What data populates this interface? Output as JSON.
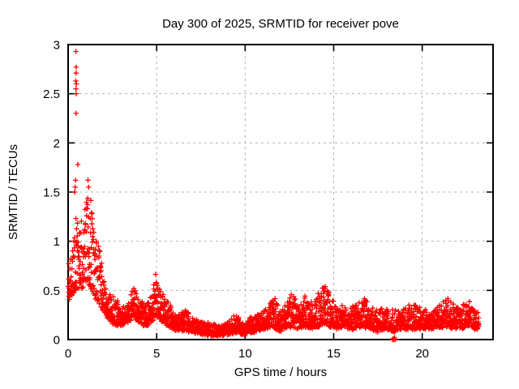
{
  "chart_data": {
    "type": "scatter",
    "title": "Day 300 of 2025, SRMTID for receiver pove",
    "xlabel": "GPS time / hours",
    "ylabel": "SRMTID / TECUs",
    "xlim": [
      0,
      24
    ],
    "ylim": [
      0,
      3
    ],
    "xticks": [
      0,
      5,
      10,
      15,
      20
    ],
    "xtick_labels": [
      "0",
      "5",
      "10",
      "15",
      "20"
    ],
    "yticks": [
      0,
      0.5,
      1,
      1.5,
      2,
      2.5,
      3
    ],
    "ytick_labels": [
      "0",
      "0.5",
      "1",
      "1.5",
      "2",
      "2.5",
      "3"
    ],
    "grid": true,
    "legend_position": "none",
    "marker": "plus",
    "colors": {
      "marker": "#ff0000",
      "grid": "#b4b4b4",
      "frame": "#000000",
      "text": "#000000",
      "background": "#ffffff"
    },
    "sampling": {
      "num_points": 2600,
      "x_start": 0.0,
      "x_end": 23.2
    },
    "band_profile": [
      [
        0.0,
        0.35,
        0.8
      ],
      [
        0.15,
        0.4,
        0.85
      ],
      [
        0.3,
        0.42,
        1.05
      ],
      [
        0.45,
        0.45,
        1.45
      ],
      [
        0.6,
        0.48,
        1.35
      ],
      [
        0.8,
        0.5,
        1.2
      ],
      [
        1.0,
        0.55,
        1.4
      ],
      [
        1.2,
        0.5,
        1.6
      ],
      [
        1.35,
        0.45,
        1.35
      ],
      [
        1.5,
        0.4,
        1.05
      ],
      [
        1.7,
        0.35,
        1.1
      ],
      [
        1.9,
        0.28,
        0.8
      ],
      [
        2.1,
        0.22,
        0.62
      ],
      [
        2.35,
        0.18,
        0.5
      ],
      [
        2.6,
        0.15,
        0.42
      ],
      [
        2.9,
        0.13,
        0.38
      ],
      [
        3.2,
        0.15,
        0.36
      ],
      [
        3.5,
        0.18,
        0.45
      ],
      [
        3.75,
        0.2,
        0.58
      ],
      [
        4.0,
        0.15,
        0.45
      ],
      [
        4.3,
        0.12,
        0.35
      ],
      [
        4.6,
        0.14,
        0.4
      ],
      [
        4.85,
        0.18,
        0.6
      ],
      [
        5.0,
        0.22,
        0.78
      ],
      [
        5.2,
        0.18,
        0.55
      ],
      [
        5.45,
        0.15,
        0.42
      ],
      [
        5.7,
        0.13,
        0.38
      ],
      [
        6.0,
        0.1,
        0.3
      ],
      [
        6.3,
        0.08,
        0.26
      ],
      [
        6.6,
        0.09,
        0.32
      ],
      [
        6.9,
        0.07,
        0.24
      ],
      [
        7.2,
        0.06,
        0.2
      ],
      [
        7.6,
        0.05,
        0.17
      ],
      [
        8.0,
        0.04,
        0.16
      ],
      [
        8.5,
        0.04,
        0.15
      ],
      [
        9.0,
        0.05,
        0.17
      ],
      [
        9.5,
        0.06,
        0.28
      ],
      [
        9.8,
        0.05,
        0.2
      ],
      [
        10.2,
        0.06,
        0.21
      ],
      [
        10.6,
        0.08,
        0.26
      ],
      [
        11.0,
        0.1,
        0.3
      ],
      [
        11.4,
        0.11,
        0.38
      ],
      [
        11.7,
        0.1,
        0.44
      ],
      [
        12.0,
        0.08,
        0.3
      ],
      [
        12.3,
        0.1,
        0.36
      ],
      [
        12.7,
        0.12,
        0.52
      ],
      [
        13.0,
        0.1,
        0.4
      ],
      [
        13.4,
        0.12,
        0.48
      ],
      [
        13.8,
        0.1,
        0.38
      ],
      [
        14.2,
        0.12,
        0.5
      ],
      [
        14.5,
        0.15,
        0.58
      ],
      [
        14.8,
        0.12,
        0.46
      ],
      [
        15.2,
        0.1,
        0.36
      ],
      [
        15.6,
        0.12,
        0.38
      ],
      [
        16.0,
        0.1,
        0.33
      ],
      [
        16.4,
        0.12,
        0.4
      ],
      [
        16.7,
        0.12,
        0.46
      ],
      [
        17.0,
        0.1,
        0.36
      ],
      [
        17.5,
        0.08,
        0.3
      ],
      [
        18.0,
        0.1,
        0.32
      ],
      [
        18.4,
        0.08,
        0.3
      ],
      [
        18.8,
        0.1,
        0.31
      ],
      [
        19.2,
        0.1,
        0.38
      ],
      [
        19.6,
        0.1,
        0.36
      ],
      [
        20.0,
        0.1,
        0.31
      ],
      [
        20.5,
        0.1,
        0.33
      ],
      [
        21.0,
        0.12,
        0.36
      ],
      [
        21.4,
        0.12,
        0.46
      ],
      [
        21.8,
        0.1,
        0.38
      ],
      [
        22.2,
        0.1,
        0.36
      ],
      [
        22.6,
        0.12,
        0.4
      ],
      [
        23.0,
        0.1,
        0.33
      ],
      [
        23.2,
        0.12,
        0.3
      ]
    ],
    "outliers": [
      [
        0.44,
        2.93
      ],
      [
        0.46,
        2.77
      ],
      [
        0.45,
        2.71
      ],
      [
        0.43,
        2.63
      ],
      [
        0.47,
        2.6
      ],
      [
        0.44,
        2.55
      ],
      [
        0.46,
        2.5
      ],
      [
        0.45,
        2.3
      ],
      [
        0.55,
        1.78
      ],
      [
        0.42,
        1.62
      ],
      [
        0.4,
        1.55
      ],
      [
        0.37,
        1.5
      ],
      [
        1.12,
        1.62
      ],
      [
        1.16,
        1.55
      ],
      [
        18.32,
        0.0
      ],
      [
        18.36,
        0.01
      ],
      [
        18.4,
        0.0
      ],
      [
        18.44,
        0.02
      ],
      [
        18.48,
        0.0
      ]
    ]
  }
}
